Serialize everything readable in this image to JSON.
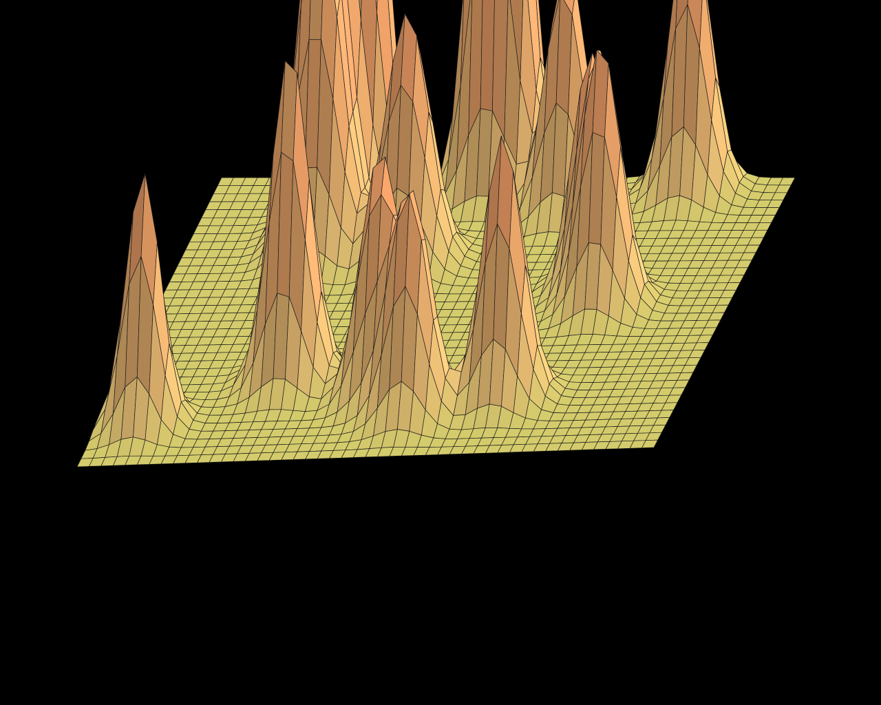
{
  "chart_data": {
    "type": "surface",
    "title": "",
    "xlabel": "",
    "ylabel": "",
    "zlabel": "",
    "grid_rows": 37,
    "grid_cols": 49,
    "x_range": [
      0,
      1
    ],
    "y_range": [
      0,
      1
    ],
    "z_range": [
      0,
      1
    ],
    "baseline_value": 0.0,
    "peaks": [
      {
        "x": 0.5,
        "y": 0.02,
        "height": 1.0,
        "width": 0.05
      },
      {
        "x": 0.48,
        "y": 0.04,
        "height": 0.7,
        "width": 0.045
      },
      {
        "x": 0.25,
        "y": 0.15,
        "height": 0.78,
        "width": 0.05
      },
      {
        "x": 0.29,
        "y": 0.12,
        "height": 0.7,
        "width": 0.045
      },
      {
        "x": 0.22,
        "y": 0.2,
        "height": 0.5,
        "width": 0.045
      },
      {
        "x": 0.24,
        "y": 0.27,
        "height": 0.7,
        "width": 0.05
      },
      {
        "x": 0.4,
        "y": 0.3,
        "height": 0.55,
        "width": 0.05
      },
      {
        "x": 0.63,
        "y": 0.12,
        "height": 0.55,
        "width": 0.045
      },
      {
        "x": 0.83,
        "y": 0.05,
        "height": 0.62,
        "width": 0.045
      },
      {
        "x": 0.74,
        "y": 0.4,
        "height": 0.45,
        "width": 0.04
      },
      {
        "x": 0.78,
        "y": 0.47,
        "height": 0.55,
        "width": 0.045
      },
      {
        "x": 0.3,
        "y": 0.72,
        "height": 0.72,
        "width": 0.045
      },
      {
        "x": 0.47,
        "y": 0.78,
        "height": 0.52,
        "width": 0.045
      },
      {
        "x": 0.54,
        "y": 0.85,
        "height": 0.5,
        "width": 0.045
      },
      {
        "x": 0.69,
        "y": 0.8,
        "height": 0.58,
        "width": 0.045
      },
      {
        "x": 0.08,
        "y": 0.86,
        "height": 0.55,
        "width": 0.04
      }
    ],
    "colors": {
      "low": "#d4cc6c",
      "mid": "#efc579",
      "high": "#f2a068",
      "tip": "#e6e08a",
      "wire": "#1a1a1a",
      "background": "#000000"
    },
    "grid": true,
    "legend": "none"
  }
}
